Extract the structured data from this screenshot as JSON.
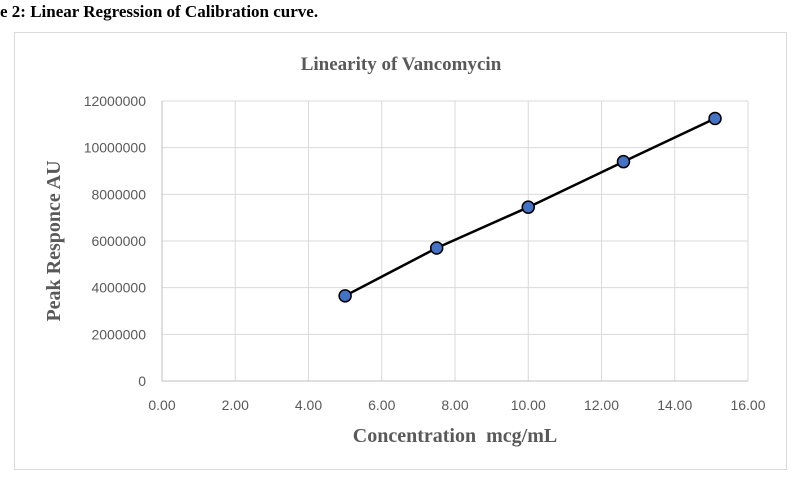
{
  "figure": {
    "caption": "e 2: Linear Regression of Calibration curve."
  },
  "chart_data": {
    "type": "scatter",
    "title": "Linearity of Vancomycin",
    "xlabel": "Concentration  mcg/mL",
    "ylabel": "Peak Responce AU",
    "xlim": [
      0,
      16
    ],
    "ylim": [
      0,
      12000000
    ],
    "x_ticks": [
      "0.00",
      "2.00",
      "4.00",
      "6.00",
      "8.00",
      "10.00",
      "12.00",
      "14.00",
      "16.00"
    ],
    "y_ticks": [
      "0",
      "2000000",
      "4000000",
      "6000000",
      "8000000",
      "10000000",
      "12000000"
    ],
    "grid": true,
    "legend": "none",
    "trendline": "linear",
    "series": [
      {
        "x": [
          5.0,
          7.5,
          10.0,
          12.6,
          15.1
        ],
        "y": [
          3650000,
          5700000,
          7450000,
          9400000,
          11250000
        ],
        "marker_color": "#4472c4"
      }
    ]
  }
}
